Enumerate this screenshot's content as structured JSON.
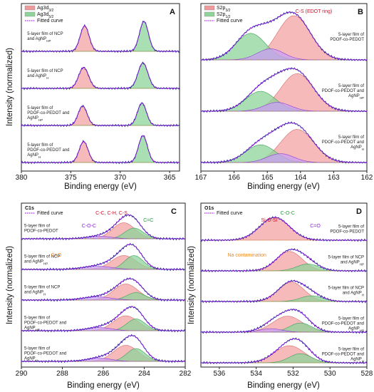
{
  "chart_data": [
    {
      "id": "A",
      "type": "line",
      "xlabel": "Binding energy (eV)",
      "ylabel": "Intensity (normalized)",
      "xlim": [
        380,
        364
      ],
      "x_ticks": [
        380,
        375,
        370,
        365
      ],
      "legend": [
        {
          "name": "Ag3d3/2",
          "color": "#ef9a9a",
          "kind": "fill"
        },
        {
          "name": "Ag3d5/2",
          "color": "#8ed39a",
          "kind": "fill"
        },
        {
          "name": "Fitted curve",
          "color": "#a020f0",
          "kind": "dots"
        }
      ],
      "legend_placement": "top-left",
      "series": [
        {
          "label": "5-layer film of NCP and AgNP_HP",
          "peaks": [
            [
              373.6,
              0.85,
              0.45
            ],
            [
              367.6,
              1.0,
              0.45
            ]
          ]
        },
        {
          "label": "5-layer film of NCP and AgNP_H",
          "peaks": [
            [
              373.7,
              0.7,
              0.5
            ],
            [
              367.7,
              0.85,
              0.5
            ]
          ]
        },
        {
          "label": "5-layer film of PDOF-co-PEDOT and AgNP_HP",
          "peaks": [
            [
              373.8,
              0.65,
              0.45
            ],
            [
              367.8,
              0.75,
              0.45
            ]
          ]
        },
        {
          "label": "5-layer film of PDOF-co-PEDOT and AgNP_H",
          "peaks": [
            [
              373.7,
              0.7,
              0.45
            ],
            [
              367.7,
              0.9,
              0.45
            ]
          ]
        }
      ],
      "annotations": []
    },
    {
      "id": "B",
      "type": "line",
      "xlabel": "Binding energy (eV)",
      "ylabel": "",
      "xlim": [
        167,
        162
      ],
      "x_ticks": [
        167,
        166,
        165,
        164,
        163,
        162
      ],
      "legend": [
        {
          "name": "S2p3/2",
          "color": "#ef9a9a",
          "kind": "fill"
        },
        {
          "name": "S2p1/2",
          "color": "#8ed39a",
          "kind": "fill"
        },
        {
          "name": "Fitted curve",
          "color": "#a020f0",
          "kind": "dots"
        }
      ],
      "legend_placement": "top-left",
      "series": [
        {
          "label": "5-layer film of PDOF-co-PEDOT",
          "peaks": [
            [
              164.2,
              1.0,
              0.5
            ],
            [
              165.5,
              0.6,
              0.45
            ],
            [
              164.9,
              0.25,
              0.4
            ]
          ]
        },
        {
          "label": "5-layer film of PDOF-co-PEDOT and AgNP_HP",
          "peaks": [
            [
              164.1,
              0.85,
              0.5
            ],
            [
              165.2,
              0.45,
              0.45
            ],
            [
              164.7,
              0.2,
              0.4
            ]
          ]
        },
        {
          "label": "5-layer film of PDOF-co-PEDOT and AgNP_H",
          "peaks": [
            [
              164.1,
              0.75,
              0.5
            ],
            [
              165.2,
              0.4,
              0.45
            ],
            [
              164.6,
              0.2,
              0.4
            ]
          ]
        }
      ],
      "annotations": [
        {
          "text": "C-S (EDOT ring)",
          "x": 163.6,
          "color": "#d0112b"
        }
      ]
    },
    {
      "id": "C",
      "title": "C1s",
      "type": "line",
      "xlabel": "Binding energy (eV)",
      "ylabel": "Intensity (normalized)",
      "xlim": [
        290,
        282
      ],
      "x_ticks": [
        290,
        288,
        286,
        284,
        282
      ],
      "legend": [
        {
          "name": "Fitted curve",
          "color": "#a020f0",
          "kind": "dots"
        }
      ],
      "legend_placement": "top-left",
      "series": [
        {
          "label": "5-layer film of PDOF-co-PEDOT",
          "peaks": [
            [
              285.0,
              0.75,
              0.55
            ],
            [
              284.5,
              0.5,
              0.45
            ],
            [
              286.2,
              0.12,
              0.6
            ]
          ]
        },
        {
          "label": "5-layer film of NCP and AgNP_HP",
          "peaks": [
            [
              285.0,
              0.65,
              0.6
            ],
            [
              284.5,
              0.65,
              0.45
            ],
            [
              286.3,
              0.15,
              0.7
            ]
          ]
        },
        {
          "label": "5-layer film of NCP and AgNP_H",
          "peaks": [
            [
              284.9,
              0.75,
              0.6
            ],
            [
              284.4,
              0.35,
              0.45
            ],
            [
              286.3,
              0.15,
              0.7
            ]
          ]
        },
        {
          "label": "5-layer film of PDOF-co-PEDOT and AgNP_HP",
          "peaks": [
            [
              284.9,
              0.7,
              0.6
            ],
            [
              284.4,
              0.55,
              0.45
            ],
            [
              286.2,
              0.15,
              0.6
            ]
          ]
        },
        {
          "label": "5-layer film of PDOF-co-PEDOT and AgNP_H",
          "peaks": [
            [
              284.9,
              0.75,
              0.6
            ],
            [
              284.4,
              0.6,
              0.45
            ],
            [
              286.2,
              0.15,
              0.6
            ]
          ]
        }
      ],
      "annotations": [
        {
          "text": "C-C, C-H, C-S",
          "x": 285.6,
          "color": "#d0112b"
        },
        {
          "text": "C=C",
          "x": 283.8,
          "color": "#1f9e3a"
        },
        {
          "text": "C-O-C",
          "x": 286.7,
          "color": "#8b1fd1"
        },
        {
          "text": "C=O",
          "x": 288.3,
          "color": "#ef8a1c"
        }
      ]
    },
    {
      "id": "D",
      "title": "O1s",
      "type": "line",
      "xlabel": "Binding energy (eV)",
      "ylabel": "Intensity (normalized)",
      "xlim": [
        537,
        528
      ],
      "x_ticks": [
        536,
        534,
        532,
        530,
        528
      ],
      "legend": [
        {
          "name": "Fitted curve",
          "color": "#a020f0",
          "kind": "dots"
        }
      ],
      "legend_placement": "top-left",
      "series": [
        {
          "label": "5-layer film of PDOF-co-PEDOT",
          "peaks": [
            [
              533.0,
              1.0,
              0.8
            ]
          ]
        },
        {
          "label": "5-layer film of NCP and AgNP_HP",
          "peaks": [
            [
              532.2,
              0.85,
              0.7
            ],
            [
              531.2,
              0.3,
              0.6
            ]
          ]
        },
        {
          "label": "5-layer film of NCP and AgNP_H",
          "peaks": [
            [
              532.1,
              0.85,
              0.7
            ],
            [
              531.0,
              0.25,
              0.6
            ]
          ]
        },
        {
          "label": "5-layer film of PDOF-co-PEDOT and AgNP_HP",
          "peaks": [
            [
              532.3,
              0.7,
              0.8
            ],
            [
              531.6,
              0.4,
              0.6
            ],
            [
              533.2,
              0.15,
              0.6
            ]
          ]
        },
        {
          "label": "5-layer film of PDOF-co-PEDOT and AgNP_H",
          "peaks": [
            [
              532.2,
              0.75,
              0.8
            ],
            [
              531.6,
              0.4,
              0.6
            ]
          ]
        }
      ],
      "annotations": [
        {
          "text": "C-O-C",
          "x": 532.3,
          "color": "#1f9e3a"
        },
        {
          "text": "Si-O-Si",
          "x": 533.3,
          "color": "#d0112b"
        },
        {
          "text": "C=O",
          "x": 530.8,
          "color": "#8b1fd1"
        },
        {
          "text": "Na contamination",
          "x": 534.5,
          "color": "#ef8a1c"
        }
      ]
    }
  ],
  "panel_letters": [
    "A",
    "B",
    "C",
    "D"
  ]
}
